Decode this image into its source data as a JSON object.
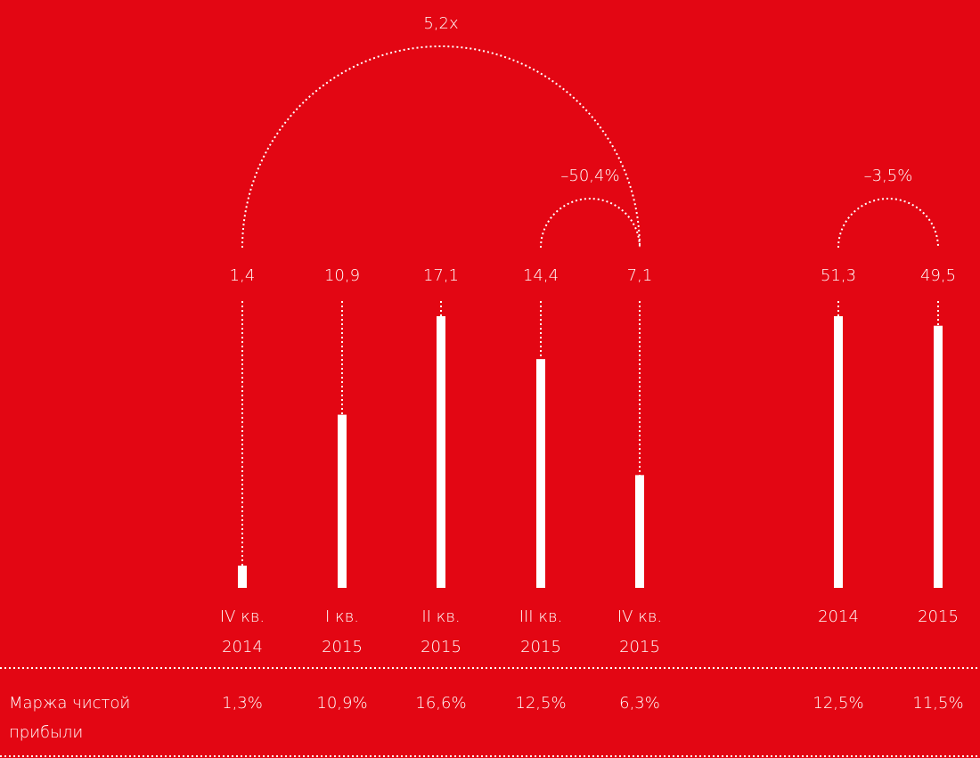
{
  "title": "",
  "chart_data": {
    "type": "bar",
    "title": "",
    "categories": [
      {
        "line1": "IV кв.",
        "line2": "2014"
      },
      {
        "line1": "I кв.",
        "line2": "2015"
      },
      {
        "line1": "II кв.",
        "line2": "2015"
      },
      {
        "line1": "III кв.",
        "line2": "2015"
      },
      {
        "line1": "IV кв.",
        "line2": "2015"
      },
      {
        "line1": "",
        "line2": "2014"
      },
      {
        "line1": "",
        "line2": "2015"
      }
    ],
    "value_labels": [
      "1,4",
      "10,9",
      "17,1",
      "14,4",
      "7,1",
      "51,3",
      "49,5"
    ],
    "values": [
      1.4,
      10.9,
      17.1,
      14.4,
      7.1,
      51.3,
      49.5
    ],
    "groups": [
      {
        "name": "quarters",
        "ylim": [
          0,
          17.1
        ],
        "indices": [
          0,
          1,
          2,
          3,
          4
        ]
      },
      {
        "name": "years",
        "ylim": [
          0,
          51.3
        ],
        "indices": [
          5,
          6
        ]
      }
    ],
    "comparisons": [
      {
        "from": 0,
        "to": 4,
        "label": "5,2x"
      },
      {
        "from": 3,
        "to": 4,
        "label": "–50,4%"
      },
      {
        "from": 5,
        "to": 6,
        "label": "–3,5%"
      }
    ],
    "margin_row": {
      "label_line1": "Маржа чистой",
      "label_line2": "прибыли",
      "values": [
        "1,3%",
        "10,9%",
        "16,6%",
        "12,5%",
        "6,3%",
        "12,5%",
        "11,5%"
      ]
    }
  },
  "colors": {
    "background": "#e30613",
    "foreground": "#ffffff"
  }
}
